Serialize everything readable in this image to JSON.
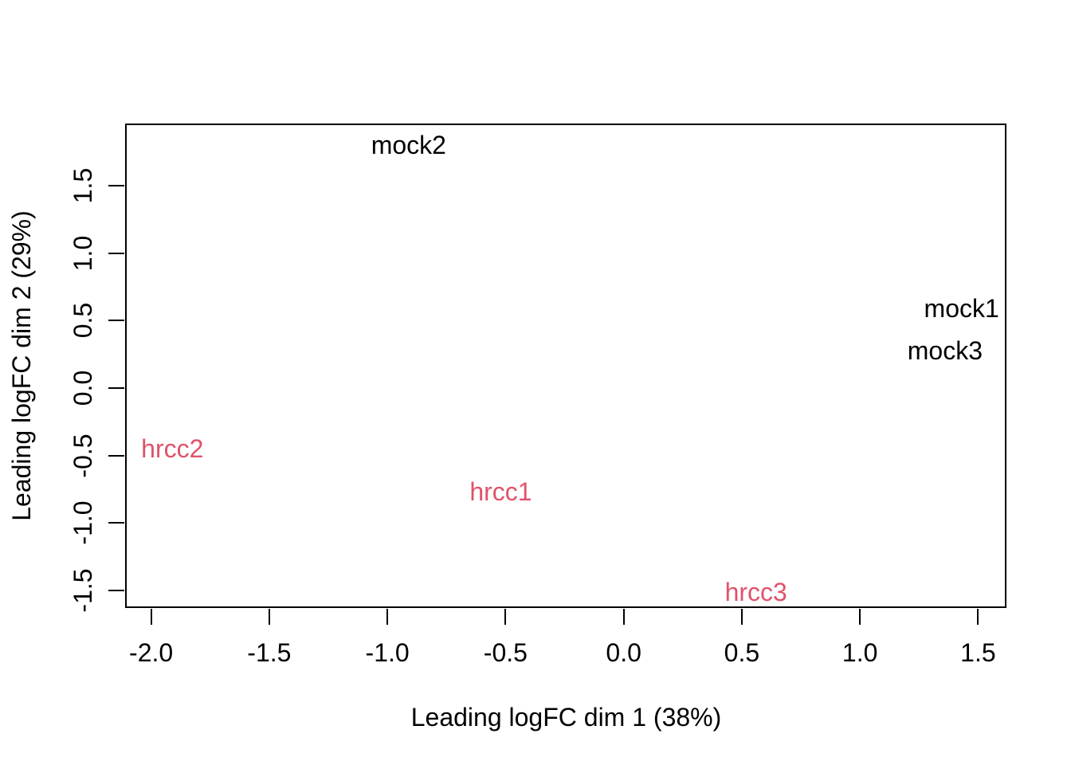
{
  "chart_data": {
    "type": "scatter",
    "title": "",
    "xlabel": "Leading logFC dim 1 (38%)",
    "ylabel": "Leading logFC dim 2 (29%)",
    "xlim": [
      -2.11,
      1.62
    ],
    "ylim": [
      -1.63,
      1.96
    ],
    "grid": false,
    "legend": "none",
    "x_ticks": [
      -2.0,
      -1.5,
      -1.0,
      -0.5,
      0.0,
      0.5,
      1.0,
      1.5
    ],
    "x_tick_labels": [
      "-2.0",
      "-1.5",
      "-1.0",
      "-0.5",
      "0.0",
      "0.5",
      "1.0",
      "1.5"
    ],
    "y_ticks": [
      -1.5,
      -1.0,
      -0.5,
      0.0,
      0.5,
      1.0,
      1.5
    ],
    "y_tick_labels": [
      "-1.5",
      "-1.0",
      "-0.5",
      "0.0",
      "0.5",
      "1.0",
      "1.5"
    ],
    "point_style": "text-labels",
    "series": [
      {
        "name": "mock",
        "color": "#000000",
        "points": [
          {
            "label": "mock1",
            "x": 1.43,
            "y": 0.59
          },
          {
            "label": "mock2",
            "x": -0.91,
            "y": 1.8
          },
          {
            "label": "mock3",
            "x": 1.36,
            "y": 0.28
          }
        ]
      },
      {
        "name": "hrcc",
        "color": "#DF536B",
        "points": [
          {
            "label": "hrcc1",
            "x": -0.52,
            "y": -0.77
          },
          {
            "label": "hrcc2",
            "x": -1.91,
            "y": -0.45
          },
          {
            "label": "hrcc3",
            "x": 0.56,
            "y": -1.51
          }
        ]
      }
    ]
  },
  "colors": {
    "foreground": "#000000",
    "background": "#ffffff",
    "accent_hrcc": "#DF536B"
  }
}
